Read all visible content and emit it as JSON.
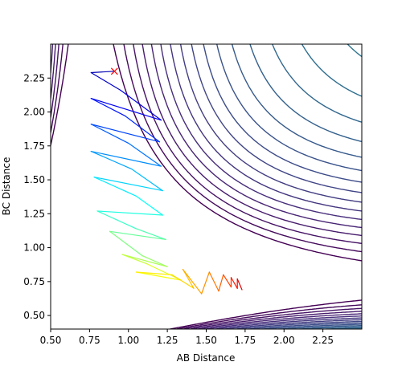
{
  "chart_data": {
    "type": "contour",
    "xlabel": "AB Distance",
    "ylabel": "BC Distance",
    "xlim": [
      0.5,
      2.5
    ],
    "ylim": [
      0.4,
      2.5
    ],
    "xticks": [
      "0.50",
      "0.75",
      "1.00",
      "1.25",
      "1.50",
      "1.75",
      "2.00",
      "2.25"
    ],
    "yticks": [
      "0.50",
      "0.75",
      "1.00",
      "1.25",
      "1.50",
      "1.75",
      "2.00",
      "2.25"
    ],
    "surface": {
      "description_values": "LEPS-like potential energy surface contour lines",
      "levels_count": 40,
      "colormap": "viridis"
    },
    "start_marker": {
      "x": 0.91,
      "y": 2.3,
      "symbol": "x",
      "color": "#ff0000"
    },
    "trajectory": {
      "points": [
        [
          0.91,
          2.3
        ],
        [
          0.76,
          2.29
        ],
        [
          0.95,
          2.16
        ],
        [
          1.21,
          1.94
        ],
        [
          0.76,
          2.1
        ],
        [
          0.98,
          1.97
        ],
        [
          1.2,
          1.78
        ],
        [
          0.76,
          1.91
        ],
        [
          1.0,
          1.77
        ],
        [
          1.21,
          1.6
        ],
        [
          0.76,
          1.71
        ],
        [
          1.02,
          1.58
        ],
        [
          1.22,
          1.42
        ],
        [
          0.78,
          1.52
        ],
        [
          1.05,
          1.38
        ],
        [
          1.22,
          1.24
        ],
        [
          0.8,
          1.27
        ],
        [
          1.05,
          1.14
        ],
        [
          1.24,
          1.06
        ],
        [
          0.88,
          1.12
        ],
        [
          1.09,
          0.94
        ],
        [
          1.25,
          0.86
        ],
        [
          0.96,
          0.95
        ],
        [
          1.12,
          0.88
        ],
        [
          1.34,
          0.76
        ],
        [
          1.05,
          0.82
        ],
        [
          1.28,
          0.8
        ],
        [
          1.42,
          0.7
        ],
        [
          1.35,
          0.84
        ],
        [
          1.47,
          0.66
        ],
        [
          1.52,
          0.82
        ],
        [
          1.58,
          0.68
        ],
        [
          1.61,
          0.8
        ],
        [
          1.66,
          0.71
        ],
        [
          1.66,
          0.78
        ],
        [
          1.7,
          0.7
        ],
        [
          1.7,
          0.77
        ],
        [
          1.73,
          0.69
        ]
      ],
      "colormap": "jet"
    }
  }
}
